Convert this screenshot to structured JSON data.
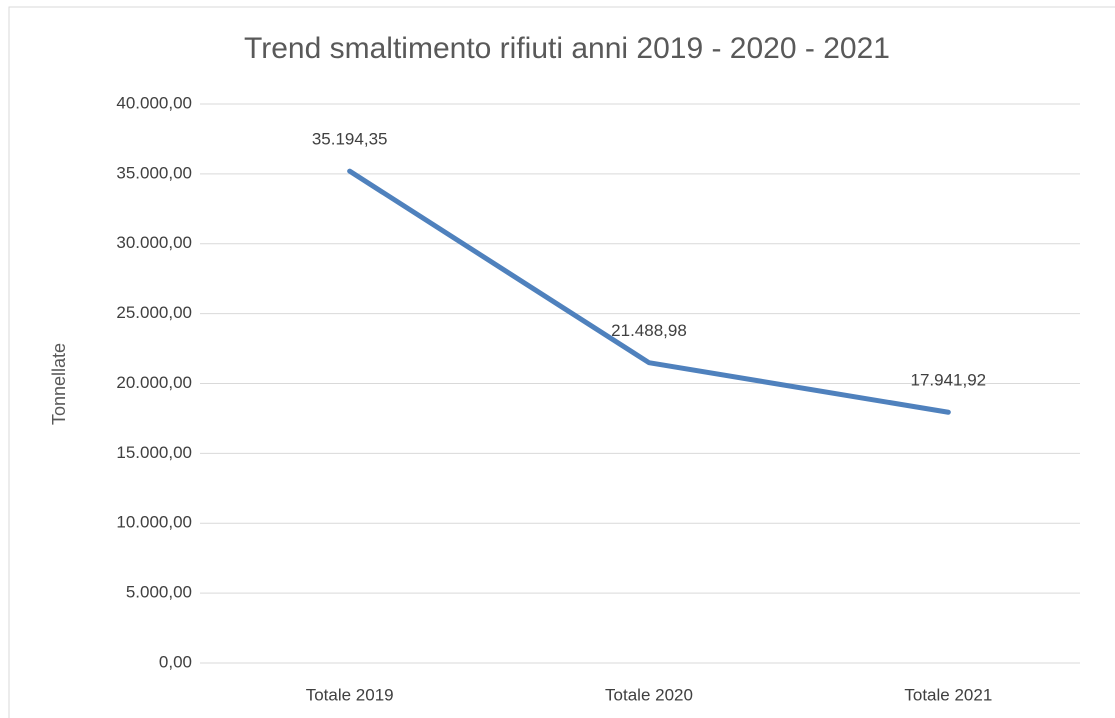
{
  "chart_data": {
    "type": "line",
    "title": "Trend smaltimento rifiuti anni 2019 - 2020 - 2021",
    "y_label": "Tonnellate",
    "categories": [
      "Totale 2019",
      "Totale 2020",
      "Totale 2021"
    ],
    "series": [
      {
        "name": "Tonnellate",
        "color": "#4f81bd",
        "values": [
          35194.35,
          21488.98,
          17941.92
        ],
        "value_labels": [
          "35.194,35",
          "21.488,98",
          "17.941,92"
        ]
      }
    ],
    "ylim": [
      0,
      40000
    ],
    "yticks": [
      {
        "value": 0,
        "label": "0,00"
      },
      {
        "value": 5000,
        "label": "5.000,00"
      },
      {
        "value": 10000,
        "label": "10.000,00"
      },
      {
        "value": 15000,
        "label": "15.000,00"
      },
      {
        "value": 20000,
        "label": "20.000,00"
      },
      {
        "value": 25000,
        "label": "25.000,00"
      },
      {
        "value": 30000,
        "label": "30.000,00"
      },
      {
        "value": 35000,
        "label": "35.000,00"
      },
      {
        "value": 40000,
        "label": "40.000,00"
      }
    ],
    "grid": true
  }
}
